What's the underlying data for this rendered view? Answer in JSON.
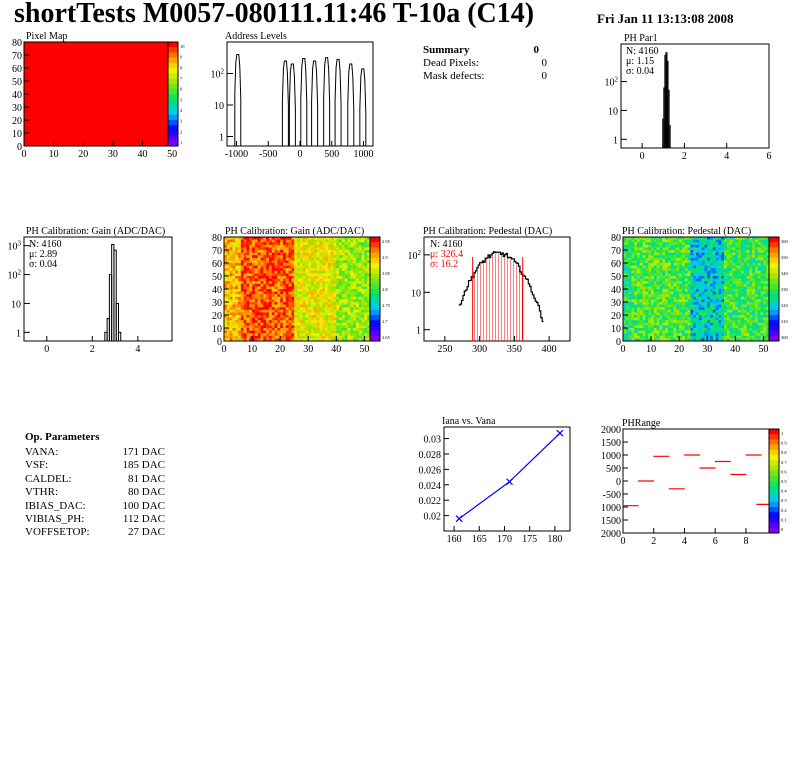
{
  "header": {
    "title": "shortTests M0057-080111.11:46 T-10a (C14)",
    "date": "Fri Jan 11 13:13:08 2008"
  },
  "summary": {
    "title": "Summary",
    "total": "0",
    "rows": [
      {
        "label": "Dead Pixels:",
        "value": "0"
      },
      {
        "label": "Mask defects:",
        "value": "0"
      }
    ]
  },
  "op_parameters": {
    "title": "Op. Parameters",
    "rows": [
      {
        "label": "VANA:",
        "value": "171 DAC"
      },
      {
        "label": "VSF:",
        "value": "185 DAC"
      },
      {
        "label": "CALDEL:",
        "value": "81 DAC"
      },
      {
        "label": "VTHR:",
        "value": "80 DAC"
      },
      {
        "label": "IBIAS_DAC:",
        "value": "100 DAC"
      },
      {
        "label": "VIBIAS_PH:",
        "value": "112 DAC"
      },
      {
        "label": "VOFFSETOP:",
        "value": "27 DAC"
      }
    ]
  },
  "colors": {
    "pixel_map_fill": "#ff0000",
    "fit_line": "#ff0000",
    "pedestal_stats": "#ff0000",
    "iana_line": "#0000ff",
    "phrange_marks": "#ff0000"
  },
  "chart_data": [
    {
      "type": "heatmap",
      "title": "Pixel Map",
      "xlim": [
        0,
        52
      ],
      "ylim": [
        0,
        80
      ],
      "xticks": [
        "0",
        "10",
        "20",
        "30",
        "40",
        "50"
      ],
      "yticks": [
        "0",
        "10",
        "20",
        "30",
        "40",
        "50",
        "60",
        "70",
        "80"
      ],
      "fill": "uniform maximum",
      "colorbar_ticks": [
        "10",
        "9",
        "8",
        "7",
        "6",
        "5",
        "4",
        "3",
        "2",
        "1"
      ]
    },
    {
      "type": "bar",
      "title": "Address Levels",
      "log_y": true,
      "xlim": [
        -1150,
        1150
      ],
      "xticks": [
        "-1000",
        "-500",
        "0",
        "500",
        "1000"
      ],
      "yticks": [
        "1",
        "10",
        "10^2"
      ],
      "peaks": [
        {
          "x": -980,
          "y": 400
        },
        {
          "x": -230,
          "y": 250
        },
        {
          "x": -120,
          "y": 200
        },
        {
          "x": 60,
          "y": 300
        },
        {
          "x": 230,
          "y": 250
        },
        {
          "x": 420,
          "y": 320
        },
        {
          "x": 600,
          "y": 280
        },
        {
          "x": 800,
          "y": 200
        },
        {
          "x": 990,
          "y": 140
        }
      ]
    },
    {
      "type": "bar",
      "title": "PH Par1",
      "log_y": true,
      "xlim": [
        -1,
        6
      ],
      "xticks": [
        "0",
        "2",
        "4",
        "6"
      ],
      "yticks": [
        "1",
        "10",
        "10^2"
      ],
      "stats": [
        "N: 4160",
        "μ: 1.15",
        "σ: 0.04"
      ],
      "bins": [
        {
          "x": 1.0,
          "y": 5
        },
        {
          "x": 1.05,
          "y": 60
        },
        {
          "x": 1.1,
          "y": 800
        },
        {
          "x": 1.15,
          "y": 1000
        },
        {
          "x": 1.2,
          "y": 500
        },
        {
          "x": 1.25,
          "y": 50
        },
        {
          "x": 1.3,
          "y": 3
        }
      ]
    },
    {
      "type": "bar",
      "title": "PH Calibration: Gain (ADC/DAC)",
      "log_y": true,
      "xlim": [
        -1,
        5.5
      ],
      "xticks": [
        "0",
        "2",
        "4"
      ],
      "yticks": [
        "1",
        "10",
        "10^2",
        "10^3"
      ],
      "stats": [
        "N: 4160",
        "μ: 2.89",
        "σ: 0.04"
      ],
      "bins": [
        {
          "x": 2.6,
          "y": 1
        },
        {
          "x": 2.7,
          "y": 3
        },
        {
          "x": 2.8,
          "y": 100
        },
        {
          "x": 2.9,
          "y": 1100
        },
        {
          "x": 3.0,
          "y": 700
        },
        {
          "x": 3.1,
          "y": 10
        },
        {
          "x": 3.2,
          "y": 1
        }
      ]
    },
    {
      "type": "heatmap",
      "title": "PH Calibration: Gain (ADC/DAC)",
      "xlim": [
        0,
        52
      ],
      "ylim": [
        0,
        80
      ],
      "xticks": [
        "0",
        "10",
        "20",
        "30",
        "40",
        "50"
      ],
      "yticks": [
        "0",
        "10",
        "20",
        "30",
        "40",
        "50",
        "60",
        "70",
        "80"
      ],
      "colorbar_ticks": [
        "2.95",
        "2.9",
        "2.85",
        "2.8",
        "2.75",
        "2.7",
        "2.65"
      ]
    },
    {
      "type": "bar",
      "title": "PH Calibration: Pedestal (DAC)",
      "log_y": true,
      "xlim": [
        220,
        430
      ],
      "xticks": [
        "250",
        "300",
        "350",
        "400"
      ],
      "yticks": [
        "1",
        "10",
        "10^2"
      ],
      "stats": [
        "N: 4160"
      ],
      "fit_stats": [
        "μ: 326.4",
        "σ: 16.2"
      ],
      "fit_range": [
        290,
        362
      ],
      "mean": 326.4,
      "sigma": 16.2,
      "peak": 110
    },
    {
      "type": "heatmap",
      "title": "PH Calibration: Pedestal (DAC)",
      "xlim": [
        0,
        52
      ],
      "ylim": [
        0,
        80
      ],
      "xticks": [
        "0",
        "10",
        "20",
        "30",
        "40",
        "50"
      ],
      "yticks": [
        "0",
        "10",
        "20",
        "30",
        "40",
        "50",
        "60",
        "70",
        "80"
      ],
      "colorbar_ticks": [
        "360",
        "350",
        "340",
        "330",
        "320",
        "310",
        "300"
      ]
    },
    {
      "type": "line",
      "title": "Iana vs. Vana",
      "xlim": [
        158,
        183
      ],
      "ylim": [
        0.018,
        0.0315
      ],
      "xticks": [
        "160",
        "165",
        "170",
        "175",
        "180"
      ],
      "yticks": [
        "0.02",
        "0.022",
        "0.024",
        "0.026",
        "0.028",
        "0.03"
      ],
      "x": [
        161,
        171,
        181
      ],
      "y": [
        0.0196,
        0.0244,
        0.0307
      ]
    },
    {
      "type": "scatter",
      "title": "PHRange",
      "xlim": [
        0,
        9.5
      ],
      "ylim": [
        -2000,
        2000
      ],
      "xticks": [
        "0",
        "2",
        "4",
        "6",
        "8"
      ],
      "yticks": [
        "2000",
        "1500",
        "1000",
        "500",
        "0",
        "-500",
        "1000",
        "1500",
        "2000"
      ],
      "x": [
        0.5,
        1.5,
        2.5,
        3.5,
        4.5,
        5.5,
        6.5,
        7.5,
        8.5,
        9.2
      ],
      "y": [
        -950,
        0,
        950,
        -300,
        1000,
        500,
        750,
        250,
        1000,
        -900
      ],
      "colorbar_ticks": [
        "1",
        "0.9",
        "0.8",
        "0.7",
        "0.6",
        "0.5",
        "0.4",
        "0.3",
        "0.2",
        "0.1",
        "0"
      ]
    }
  ]
}
